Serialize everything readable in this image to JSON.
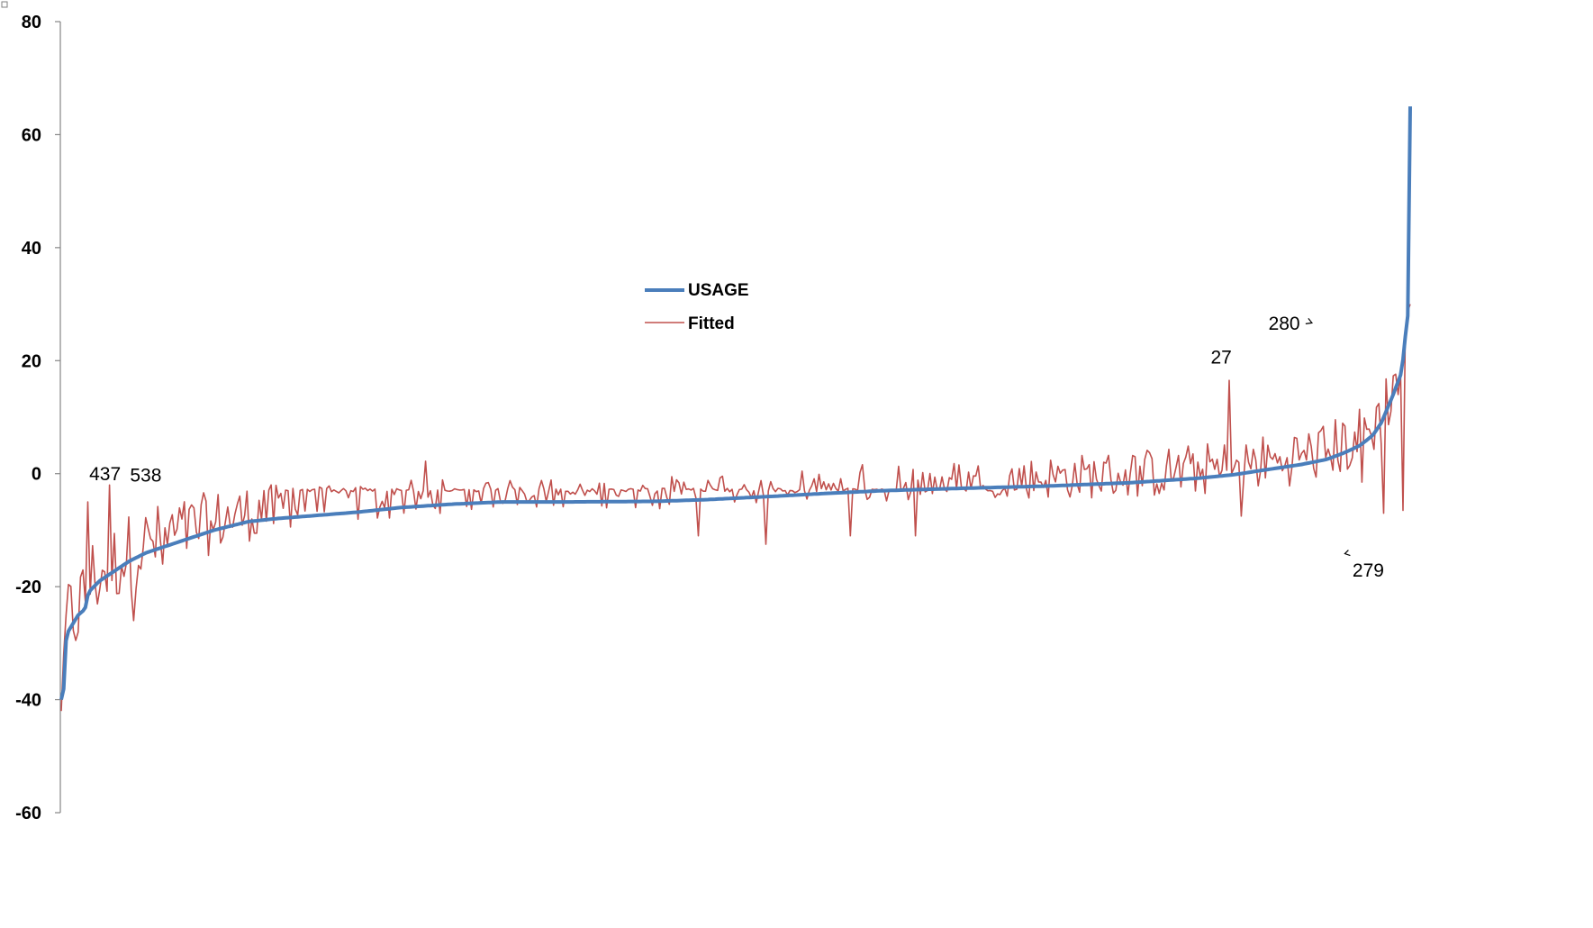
{
  "chart_data": {
    "type": "line",
    "title": "",
    "xlabel": "",
    "ylabel": "",
    "ylim": [
      -60,
      80
    ],
    "y_ticks": [
      -60,
      -40,
      -20,
      0,
      20,
      40,
      60,
      80
    ],
    "y_tick_labels": [
      "-60",
      "-40",
      "-20",
      "0",
      "20",
      "40",
      "60",
      "80"
    ],
    "grid": false,
    "legend_position": "center",
    "n_points": 560,
    "series": [
      {
        "name": "USAGE",
        "color": "#4a7ebb",
        "anchors": [
          [
            0,
            -40
          ],
          [
            3,
            -38
          ],
          [
            5,
            -30
          ],
          [
            8,
            -28
          ],
          [
            12,
            -27
          ],
          [
            20,
            -25
          ],
          [
            28,
            -24
          ],
          [
            32,
            -21
          ],
          [
            45,
            -19
          ],
          [
            60,
            -17.5
          ],
          [
            80,
            -15.5
          ],
          [
            100,
            -14
          ],
          [
            120,
            -13
          ],
          [
            150,
            -11.5
          ],
          [
            180,
            -10
          ],
          [
            220,
            -8.5
          ],
          [
            250,
            -8
          ],
          [
            300,
            -7.4
          ],
          [
            350,
            -6.8
          ],
          [
            400,
            -6
          ],
          [
            460,
            -5.4
          ],
          [
            520,
            -5
          ],
          [
            600,
            -5
          ],
          [
            700,
            -4.9
          ],
          [
            760,
            -4.6
          ],
          [
            840,
            -4
          ],
          [
            900,
            -3.5
          ],
          [
            970,
            -3
          ],
          [
            1060,
            -2.6
          ],
          [
            1160,
            -2.2
          ],
          [
            1260,
            -1.6
          ],
          [
            1340,
            -0.8
          ],
          [
            1380,
            -0.2
          ],
          [
            1420,
            0.7
          ],
          [
            1460,
            1.6
          ],
          [
            1490,
            2.5
          ],
          [
            1510,
            3.6
          ],
          [
            1530,
            5
          ],
          [
            1545,
            6.8
          ],
          [
            1555,
            9
          ],
          [
            1562,
            11.5
          ],
          [
            1569,
            14
          ],
          [
            1574,
            16
          ],
          [
            1579,
            18
          ],
          [
            1583,
            24
          ],
          [
            1586,
            27
          ],
          [
            1587,
            33
          ],
          [
            1589,
            65
          ]
        ]
      },
      {
        "name": "Fitted",
        "color": "#c0504d",
        "noise_profile": [
          [
            0,
            9
          ],
          [
            60,
            7.5
          ],
          [
            150,
            6
          ],
          [
            300,
            4
          ],
          [
            450,
            3
          ],
          [
            600,
            2.5
          ],
          [
            750,
            3
          ],
          [
            900,
            3.5
          ],
          [
            1100,
            3.5
          ],
          [
            1300,
            4.5
          ],
          [
            1450,
            5
          ],
          [
            1589,
            6
          ]
        ],
        "spikes": [
          {
            "x": 3,
            "y": -32
          },
          {
            "x": 32,
            "y": -5
          },
          {
            "x": 57,
            "y": -2
          },
          {
            "x": 84,
            "y": -2
          },
          {
            "x": 86,
            "y": -26
          },
          {
            "x": 118,
            "y": -16
          },
          {
            "x": 180,
            "y": -10
          },
          {
            "x": 238,
            "y": -3
          },
          {
            "x": 430,
            "y": 2.2
          },
          {
            "x": 548,
            "y": -5
          },
          {
            "x": 750,
            "y": -11
          },
          {
            "x": 830,
            "y": -12.5
          },
          {
            "x": 930,
            "y": -11
          },
          {
            "x": 1006,
            "y": -11
          },
          {
            "x": 1364,
            "y": -0.5
          },
          {
            "x": 1376,
            "y": 16.5
          },
          {
            "x": 1389,
            "y": -7.5
          },
          {
            "x": 1435,
            "y": 3
          },
          {
            "x": 1519,
            "y": 1.5
          },
          {
            "x": 1533,
            "y": -1.5
          },
          {
            "x": 1558,
            "y": -7
          },
          {
            "x": 1575,
            "y": 14
          },
          {
            "x": 1580,
            "y": -6.5
          },
          {
            "x": 1589,
            "y": 30
          }
        ]
      }
    ],
    "annotations": [
      {
        "text": "437",
        "x": 33,
        "y": -1.2
      },
      {
        "text": "538",
        "x": 81,
        "y": -1.4
      },
      {
        "text": "27",
        "x": 1354,
        "y": 19.5
      },
      {
        "text": "280",
        "x": 1422,
        "y": 25.5
      },
      {
        "text": "279",
        "x": 1521,
        "y": -18.2
      }
    ],
    "annotation_markers": [
      {
        "label": "280-marker",
        "x": 1469,
        "y": 27
      },
      {
        "label": "279-marker",
        "x": 1512,
        "y": -14
      }
    ]
  }
}
